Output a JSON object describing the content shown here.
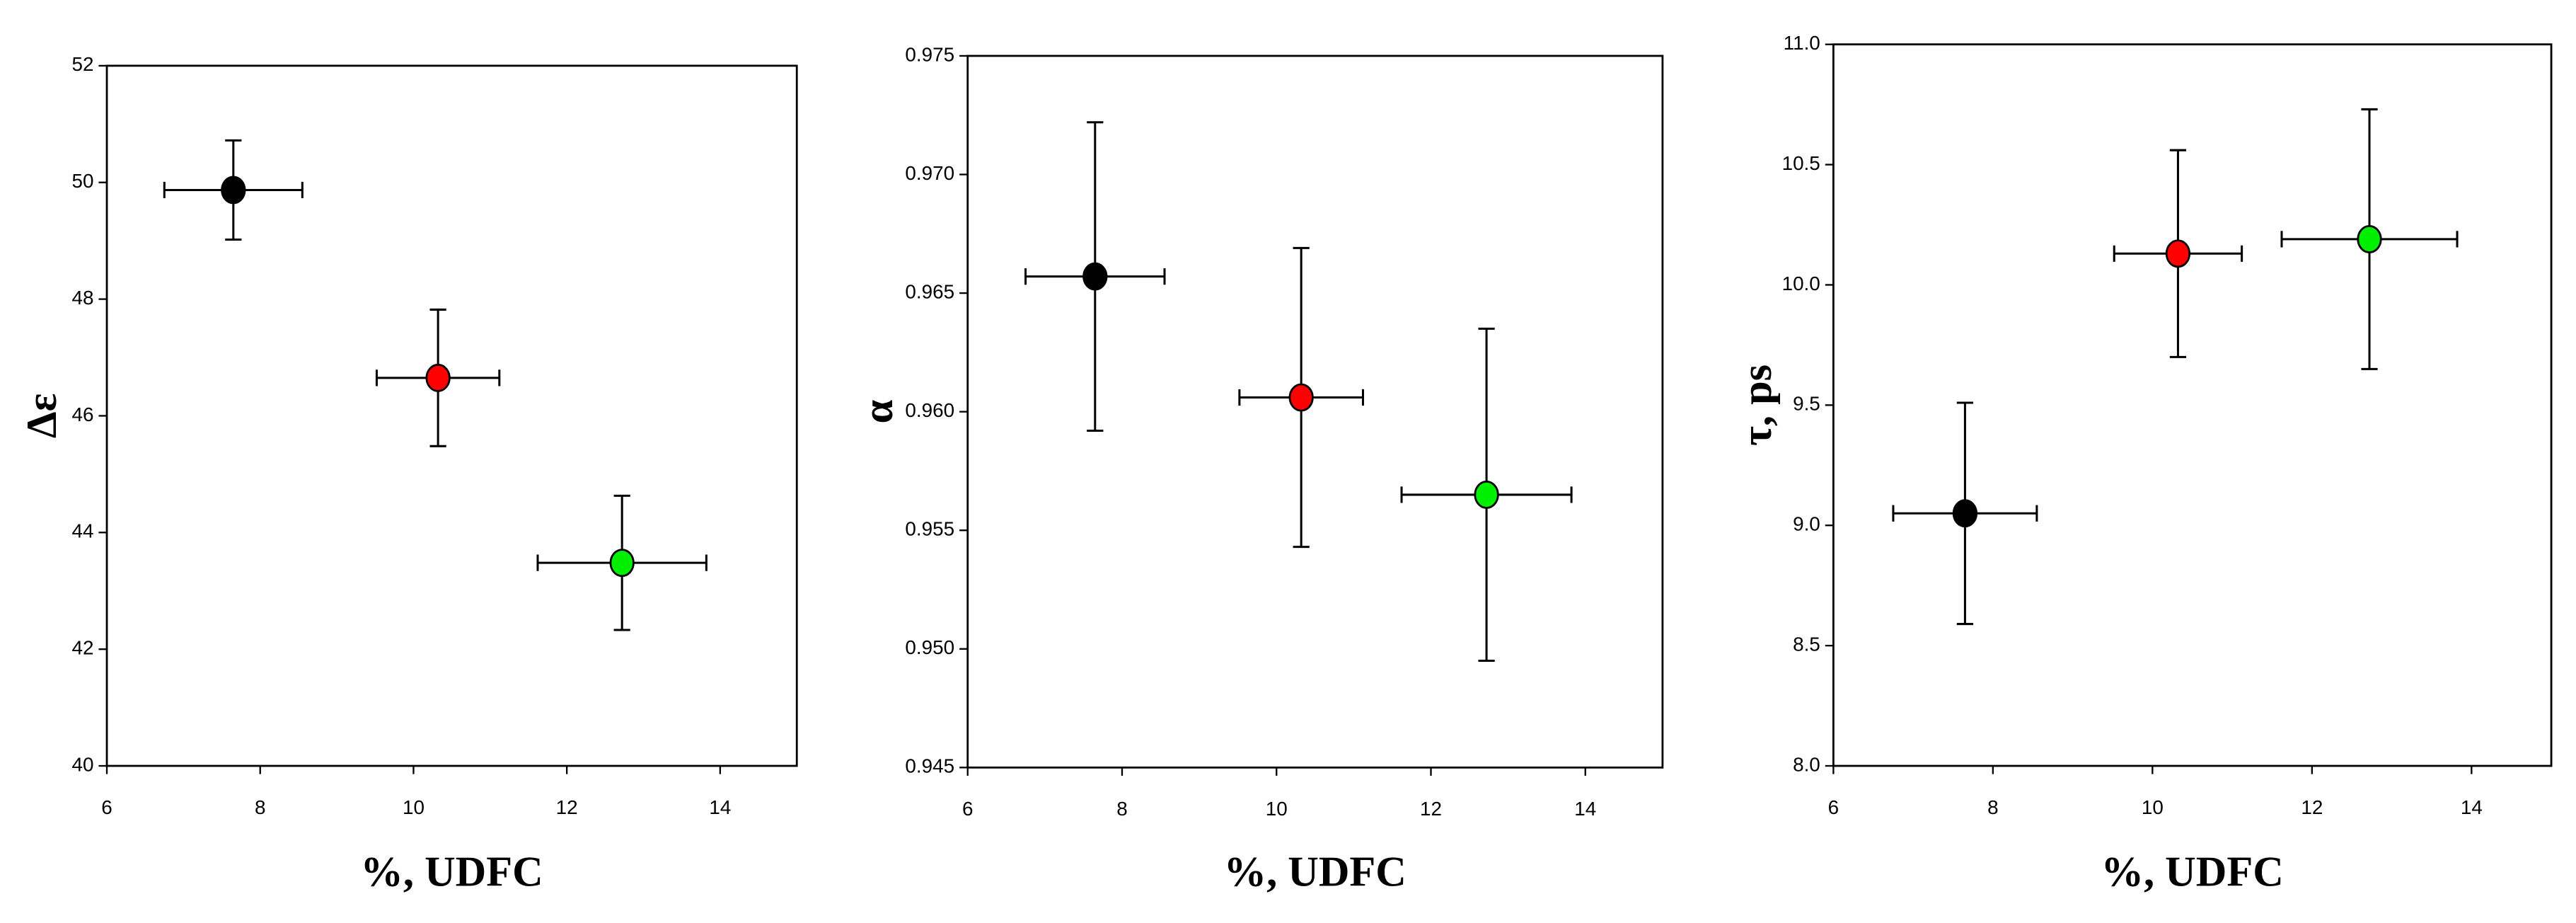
{
  "chart_data": [
    {
      "type": "scatter",
      "x_label": "%, UDFC",
      "y_label": "Δε",
      "x": [
        7.65,
        10.32,
        12.72
      ],
      "values": [
        49.87,
        46.65,
        43.48
      ],
      "xerr": [
        0.9,
        0.8,
        1.1
      ],
      "yerr": [
        0.85,
        1.17,
        1.15
      ],
      "colors": [
        "#000000",
        "#ff0000",
        "#00ee00"
      ],
      "xlim": [
        6,
        15
      ],
      "xticks": [
        6,
        8,
        10,
        12,
        14
      ],
      "ylim": [
        40,
        52
      ],
      "yticks": [
        40,
        42,
        44,
        46,
        48,
        50,
        52
      ]
    },
    {
      "type": "scatter",
      "x_label": "%, UDFC",
      "y_label": "α",
      "x": [
        7.65,
        10.32,
        12.72
      ],
      "values": [
        0.9657,
        0.9606,
        0.9565
      ],
      "xerr": [
        0.9,
        0.8,
        1.1
      ],
      "yerr": [
        0.0065,
        0.0063,
        0.007
      ],
      "colors": [
        "#000000",
        "#ff0000",
        "#00ee00"
      ],
      "xlim": [
        6,
        15
      ],
      "xticks": [
        6,
        8,
        10,
        12,
        14
      ],
      "ylim": [
        0.945,
        0.975
      ],
      "yticks": [
        0.945,
        {
          "value": 0.95,
          "label": "0.950"
        },
        0.955,
        {
          "value": 0.96,
          "label": "0.960"
        },
        0.965,
        {
          "value": 0.97,
          "label": "0.970"
        },
        0.975
      ]
    },
    {
      "type": "scatter",
      "x_label": "%, UDFC",
      "y_label": "τ, ps",
      "x": [
        7.65,
        10.32,
        12.72
      ],
      "values": [
        9.05,
        10.13,
        10.19
      ],
      "xerr": [
        0.9,
        0.8,
        1.1
      ],
      "yerr": [
        0.46,
        0.43,
        0.54
      ],
      "colors": [
        "#000000",
        "#ff0000",
        "#00ee00"
      ],
      "xlim": [
        6,
        15
      ],
      "xticks": [
        6,
        8,
        10,
        12,
        14
      ],
      "ylim": [
        8,
        11
      ],
      "yticks": [
        {
          "value": 8,
          "label": "8.0"
        },
        8.5,
        {
          "value": 9,
          "label": "9.0"
        },
        9.5,
        {
          "value": 10,
          "label": "10.0"
        },
        10.5,
        {
          "value": 11,
          "label": "11.0"
        }
      ]
    }
  ]
}
